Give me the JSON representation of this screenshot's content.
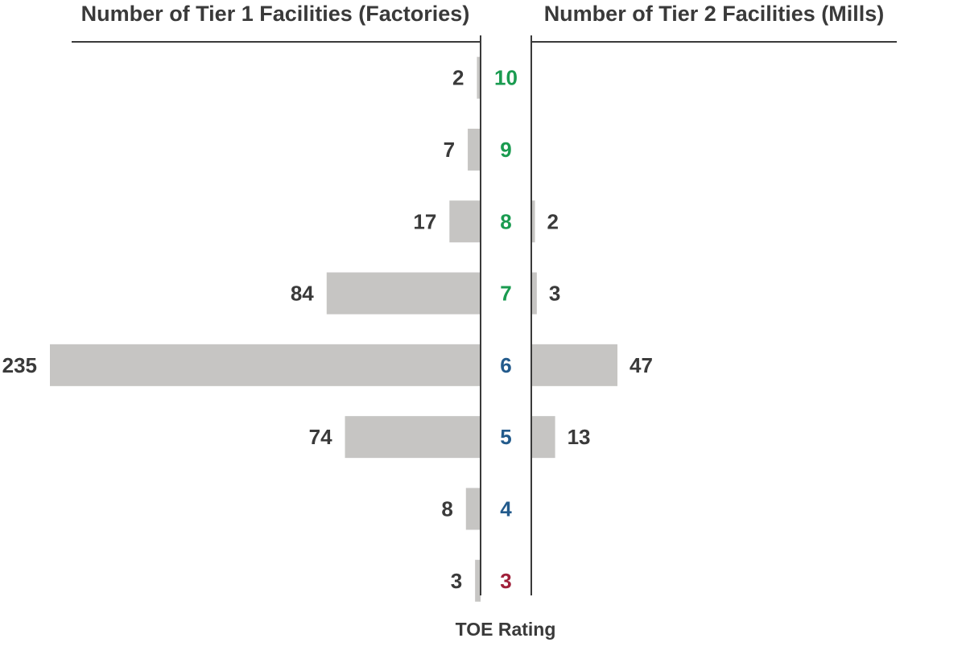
{
  "chart_data": {
    "type": "bar",
    "layout": "diverging-horizontal",
    "left_title": "Number of Tier 1 Facilities (Factories)",
    "right_title": "Number of Tier 2 Facilities (Mills)",
    "center_label": "TOE Rating",
    "categories": [
      "10",
      "9",
      "8",
      "7",
      "6",
      "5",
      "4",
      "3"
    ],
    "series": [
      {
        "name": "Number of Tier 1 Facilities (Factories)",
        "side": "left",
        "values": [
          2,
          7,
          17,
          84,
          235,
          74,
          8,
          3
        ]
      },
      {
        "name": "Number of Tier 2 Facilities (Mills)",
        "side": "right",
        "values": [
          null,
          null,
          2,
          3,
          47,
          13,
          null,
          null
        ]
      }
    ],
    "rating_colors": {
      "10": "#1a9b50",
      "9": "#1a9b50",
      "8": "#1a9b50",
      "7": "#1a9b50",
      "6": "#235b8c",
      "5": "#235b8c",
      "4": "#235b8c",
      "3": "#a0203a"
    },
    "bar_color": "#c6c5c3",
    "text_color": "#3a3a3a"
  }
}
